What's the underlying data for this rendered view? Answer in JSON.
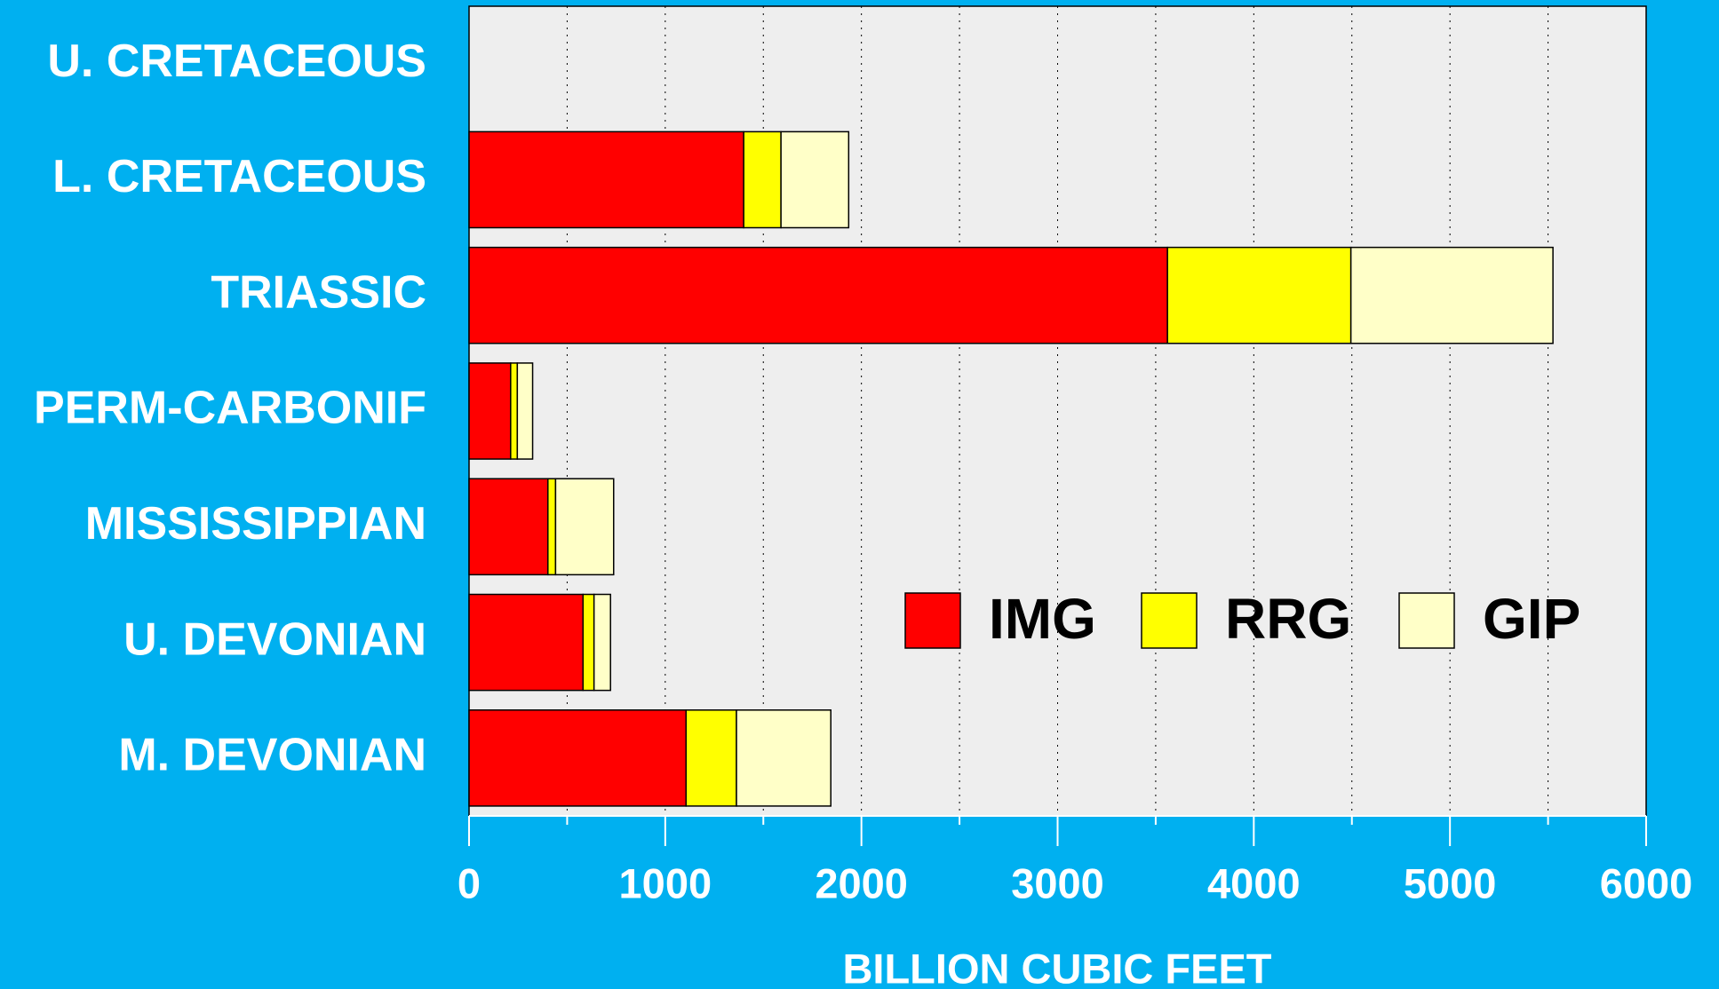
{
  "chart_data": {
    "type": "stacked_barh",
    "x_label": "BILLION CUBIC FEET",
    "categories": [
      "U. CRETACEOUS",
      "L. CRETACEOUS",
      "TRIASSIC",
      "PERM-CARBONIF",
      "MISSISSIPPIAN",
      "U. DEVONIAN",
      "M. DEVONIAN"
    ],
    "series": [
      {
        "name": "IMG",
        "color": "#ff0000",
        "values": [
          0,
          1400,
          3560,
          212,
          402,
          581,
          1106
        ]
      },
      {
        "name": "RRG",
        "color": "#ffff00",
        "values": [
          0,
          190,
          935,
          34,
          39,
          56,
          257
        ]
      },
      {
        "name": "GIP",
        "color": "#ffffc8",
        "values": [
          0,
          345,
          1030,
          78,
          296,
          84,
          481
        ]
      }
    ],
    "xlim": [
      0,
      6000
    ],
    "xticks": [
      0,
      1000,
      2000,
      3000,
      4000,
      5000,
      6000
    ],
    "minor_xticks": [
      500,
      1500,
      2500,
      3500,
      4500,
      5500
    ],
    "grid": true,
    "legend": "right"
  }
}
